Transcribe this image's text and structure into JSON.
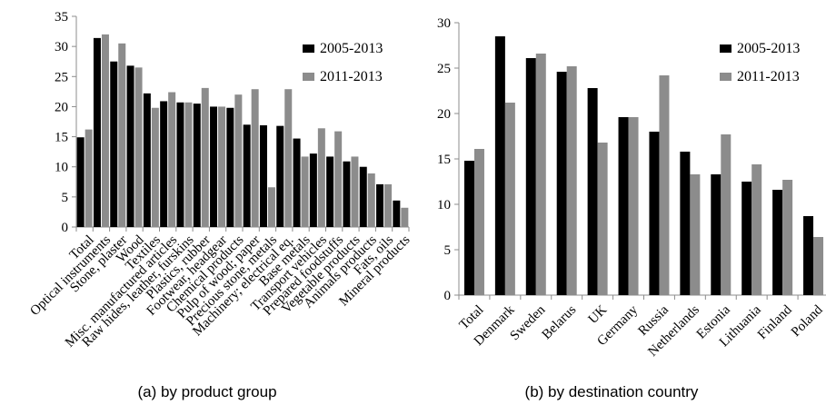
{
  "colors": {
    "series_2005_2013": "#000000",
    "series_2011_2013": "#8c8c8c",
    "axis": "#8c8c8c"
  },
  "chart_data": [
    {
      "type": "bar",
      "caption": "(a) by product group",
      "ylim": [
        0,
        35
      ],
      "yticks": [
        0,
        5,
        10,
        15,
        20,
        25,
        30,
        35
      ],
      "legend_position": "top-right",
      "categories": [
        "Total",
        "Optical instruments",
        "Stone, plaster",
        "Wood",
        "Textiles",
        "Misc. manufactured articles",
        "Raw hides, leather, furskins",
        "Plastics, rubber",
        "Footwear, headgear",
        "Chemical products",
        "Pulp of wood; paper",
        "Precious stone, metals",
        "Machinery; electrical eq.",
        "Base metals",
        "Transport vehicles",
        "Prepared foodstuffs",
        "Vegetable products",
        "Animals products",
        "Fats, oils",
        "Mineral products"
      ],
      "series": [
        {
          "name": "2005-2013",
          "values": [
            14.9,
            31.4,
            27.5,
            26.8,
            22.2,
            20.9,
            20.7,
            20.5,
            20.0,
            19.8,
            17.0,
            16.9,
            16.8,
            14.7,
            12.2,
            11.7,
            10.9,
            10.0,
            7.1,
            4.4
          ]
        },
        {
          "name": "2011-2013",
          "values": [
            16.2,
            32.0,
            30.5,
            26.5,
            19.8,
            22.4,
            20.7,
            23.1,
            20.0,
            22.0,
            22.9,
            6.6,
            22.9,
            11.7,
            16.4,
            15.9,
            11.7,
            8.9,
            7.1,
            3.2
          ]
        }
      ]
    },
    {
      "type": "bar",
      "caption": "(b) by destination country",
      "ylim": [
        0,
        30
      ],
      "yticks": [
        0,
        5,
        10,
        15,
        20,
        25,
        30
      ],
      "legend_position": "top-right",
      "categories": [
        "Total",
        "Denmark",
        "Sweden",
        "Belarus",
        "UK",
        "Germany",
        "Russia",
        "Netherlands",
        "Estonia",
        "Lithuania",
        "Finland",
        "Poland"
      ],
      "series": [
        {
          "name": "2005-2013",
          "values": [
            14.8,
            28.5,
            26.1,
            24.6,
            22.8,
            19.6,
            18.0,
            15.8,
            13.3,
            12.5,
            11.6,
            8.7
          ]
        },
        {
          "name": "2011-2013",
          "values": [
            16.1,
            21.2,
            26.6,
            25.2,
            16.8,
            19.6,
            24.2,
            13.3,
            17.7,
            14.4,
            12.7,
            6.4
          ]
        }
      ]
    }
  ]
}
